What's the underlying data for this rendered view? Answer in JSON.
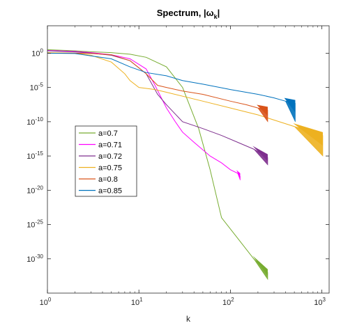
{
  "chart_data": {
    "type": "line",
    "title_main": "Spectrum, |ω",
    "title_sub": "k",
    "title_end": "|",
    "xlabel": "k",
    "ylabel": "",
    "xscale": "log",
    "yscale": "log",
    "xlim": [
      1,
      1200
    ],
    "ylim": [
      1e-35,
      10000.0
    ],
    "x_ticks": [
      {
        "value": 1,
        "base": "10",
        "exp": "0"
      },
      {
        "value": 10,
        "base": "10",
        "exp": "1"
      },
      {
        "value": 100,
        "base": "10",
        "exp": "2"
      },
      {
        "value": 1000,
        "base": "10",
        "exp": "3"
      }
    ],
    "y_ticks": [
      {
        "value": 1,
        "base": "10",
        "exp": "0"
      },
      {
        "value": 1e-05,
        "base": "10",
        "exp": "-5"
      },
      {
        "value": 1e-10,
        "base": "10",
        "exp": "-10"
      },
      {
        "value": 1e-15,
        "base": "10",
        "exp": "-15"
      },
      {
        "value": 1e-20,
        "base": "10",
        "exp": "-20"
      },
      {
        "value": 1e-25,
        "base": "10",
        "exp": "-25"
      },
      {
        "value": 1e-30,
        "base": "10",
        "exp": "-30"
      }
    ],
    "grid": false,
    "legend_position": "middle-left",
    "series": [
      {
        "name": "a=0.7",
        "color": "#77AC30",
        "x": [
          1,
          2,
          3,
          5,
          8,
          12,
          20,
          30,
          45,
          60,
          80,
          120,
          180,
          256
        ],
        "y": [
          3.2,
          2.2,
          1.6,
          1.2,
          0.7,
          0.25,
          0.01,
          1e-05,
          1e-11,
          1e-17,
          1e-24,
          1e-27,
          1e-30,
          1e-32
        ],
        "band_to_y": 1e-33
      },
      {
        "name": "a=0.71",
        "color": "#FF00FF",
        "x": [
          1,
          2,
          3,
          5,
          8,
          12,
          15,
          20,
          25,
          30,
          40,
          60,
          80,
          100,
          120,
          128
        ],
        "y": [
          2.5,
          1.8,
          1.2,
          0.6,
          0.15,
          0.005,
          2e-05,
          1e-08,
          1e-10,
          3e-12,
          1e-13,
          1e-15,
          1e-16,
          1e-17,
          3e-18,
          1e-18
        ],
        "band_to_y": 3e-19
      },
      {
        "name": "a=0.72",
        "color": "#7E2F8E",
        "x": [
          1,
          2,
          3,
          5,
          8,
          12,
          16,
          20,
          30,
          50,
          80,
          120,
          180,
          256
        ],
        "y": [
          2.2,
          1.5,
          1.0,
          0.5,
          0.08,
          0.001,
          1e-06,
          3e-08,
          1e-10,
          1e-11,
          1e-12,
          1e-13,
          1e-14,
          6e-16
        ],
        "band_to_y": 5e-17
      },
      {
        "name": "a=0.75",
        "color": "#EDB120",
        "x": [
          1,
          2,
          3,
          5,
          7,
          8,
          10,
          15,
          20,
          50,
          100,
          200,
          500,
          1024
        ],
        "y": [
          1.2,
          1.0,
          0.5,
          0.05,
          0.001,
          0.0001,
          1e-05,
          5e-06,
          2e-06,
          1e-07,
          1e-08,
          1e-09,
          2e-11,
          1e-12
        ],
        "band_to_y": 1e-15
      },
      {
        "name": "a=0.8",
        "color": "#D95319",
        "x": [
          1,
          2,
          3,
          5,
          8,
          12,
          16,
          20,
          30,
          50,
          100,
          150,
          200,
          256
        ],
        "y": [
          1.0,
          1.0,
          0.9,
          0.6,
          0.08,
          0.001,
          2e-05,
          1e-05,
          3e-06,
          1e-06,
          1e-07,
          3e-08,
          1e-08,
          5e-09
        ],
        "band_to_y": 1e-10
      },
      {
        "name": "a=0.85",
        "color": "#0072BD",
        "x": [
          1,
          2,
          3,
          5,
          8,
          12,
          20,
          30,
          50,
          100,
          200,
          300,
          400,
          512
        ],
        "y": [
          1.0,
          0.9,
          0.4,
          0.15,
          0.01,
          0.0015,
          0.0005,
          0.0001,
          3e-05,
          5e-06,
          1e-06,
          3e-07,
          1e-07,
          5e-08
        ],
        "band_to_y": 1e-10
      }
    ]
  }
}
